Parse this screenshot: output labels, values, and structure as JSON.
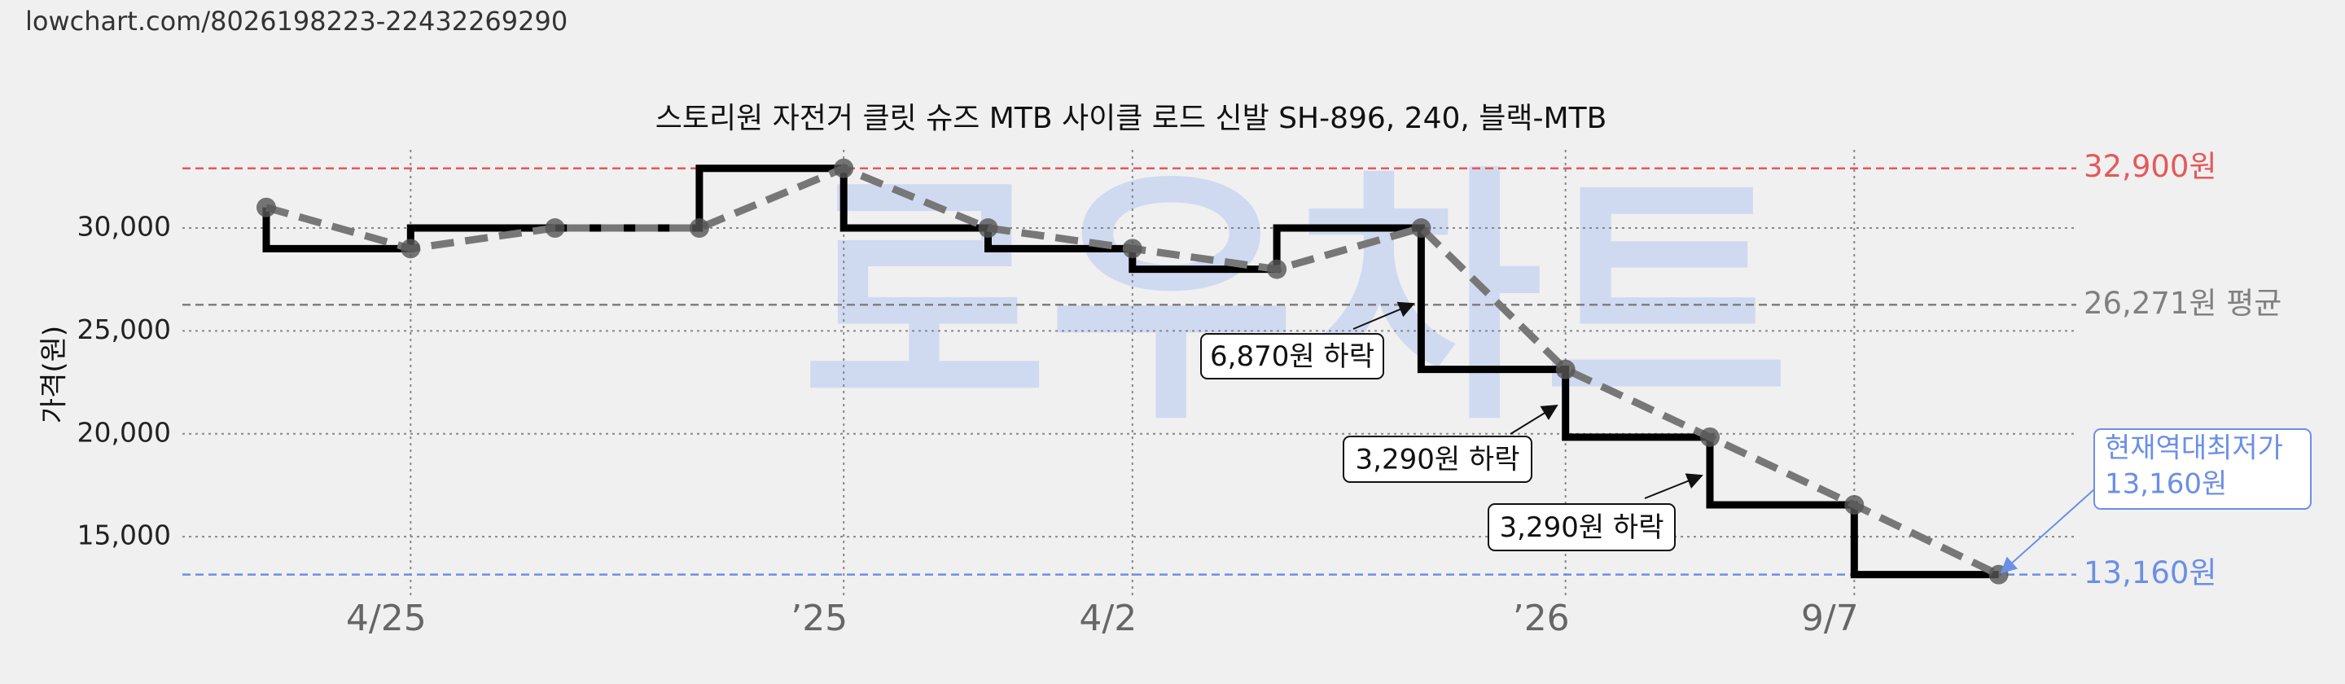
{
  "url": "lowchart.com/8026198223-22432269290",
  "chart_data": {
    "type": "line",
    "title": "스토리원 자전거 클릿 슈즈 MTB 사이클 로드 신발 SH-896, 240, 블랙-MTB",
    "watermark": "로우차트",
    "y_label": "가격(원)",
    "categories": [
      null,
      "4/25",
      null,
      null,
      "’25",
      null,
      "4/2",
      null,
      null,
      "’26",
      null,
      "9/7",
      null
    ],
    "series": [
      {
        "color": "#000000",
        "values": [
          31000,
          29000,
          30000,
          30000,
          32900,
          30000,
          29000,
          28000,
          30000,
          23130,
          19840,
          16550,
          13160
        ]
      }
    ],
    "ylim": [
      12000,
      33800
    ],
    "yticks": [
      {
        "value": 15000,
        "label": "15,000"
      },
      {
        "value": 20000,
        "label": "20,000"
      },
      {
        "value": 25000,
        "label": "25,000"
      },
      {
        "value": 30000,
        "label": "30,000"
      }
    ],
    "grid": true,
    "reference_lines": [
      {
        "value": 32900,
        "label": "32,900원",
        "color": "#e5585a"
      },
      {
        "value": 26271,
        "label": "26,271원 평균",
        "color": "#808080"
      },
      {
        "value": 13160,
        "label": "13,160원",
        "color": "#6b8fe6"
      }
    ],
    "annotations": [
      "6,870원 하락",
      "3,290원 하락",
      "3,290원 하락"
    ],
    "lowest_note": [
      "현재역대최저가",
      "13,160원"
    ]
  }
}
